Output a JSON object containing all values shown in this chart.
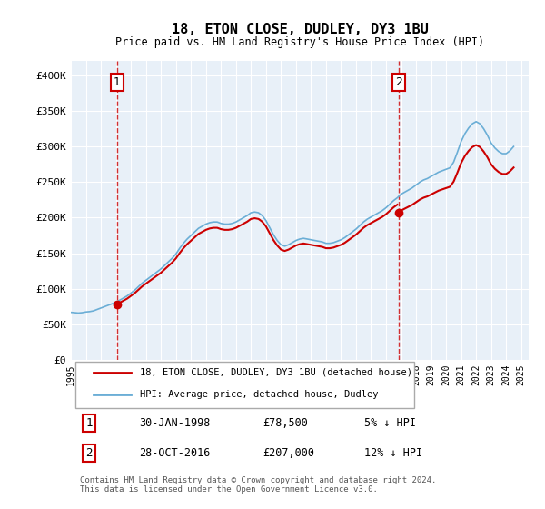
{
  "title": "18, ETON CLOSE, DUDLEY, DY3 1BU",
  "subtitle": "Price paid vs. HM Land Registry's House Price Index (HPI)",
  "xlabel": "",
  "ylabel": "",
  "ylim": [
    0,
    420000
  ],
  "xlim_start": 1995.0,
  "xlim_end": 2025.5,
  "yticks": [
    0,
    50000,
    100000,
    150000,
    200000,
    250000,
    300000,
    350000,
    400000
  ],
  "ytick_labels": [
    "£0",
    "£50K",
    "£100K",
    "£150K",
    "£200K",
    "£250K",
    "£300K",
    "£350K",
    "£400K"
  ],
  "xtick_years": [
    1995,
    1996,
    1997,
    1998,
    1999,
    2000,
    2001,
    2002,
    2003,
    2004,
    2005,
    2006,
    2007,
    2008,
    2009,
    2010,
    2011,
    2012,
    2013,
    2014,
    2015,
    2016,
    2017,
    2018,
    2019,
    2020,
    2021,
    2022,
    2023,
    2024,
    2025
  ],
  "hpi_color": "#6baed6",
  "price_color": "#cc0000",
  "background_color": "#e8f0f8",
  "sale1_date": 1998.08,
  "sale1_price": 78500,
  "sale2_date": 2016.83,
  "sale2_price": 207000,
  "legend_label1": "18, ETON CLOSE, DUDLEY, DY3 1BU (detached house)",
  "legend_label2": "HPI: Average price, detached house, Dudley",
  "annotation1_label": "1",
  "annotation2_label": "2",
  "table_row1": [
    "1",
    "30-JAN-1998",
    "£78,500",
    "5% ↓ HPI"
  ],
  "table_row2": [
    "2",
    "28-OCT-2016",
    "£207,000",
    "12% ↓ HPI"
  ],
  "footer": "Contains HM Land Registry data © Crown copyright and database right 2024.\nThis data is licensed under the Open Government Licence v3.0.",
  "hpi_data_x": [
    1995.0,
    1995.25,
    1995.5,
    1995.75,
    1996.0,
    1996.25,
    1996.5,
    1996.75,
    1997.0,
    1997.25,
    1997.5,
    1997.75,
    1998.0,
    1998.25,
    1998.5,
    1998.75,
    1999.0,
    1999.25,
    1999.5,
    1999.75,
    2000.0,
    2000.25,
    2000.5,
    2000.75,
    2001.0,
    2001.25,
    2001.5,
    2001.75,
    2002.0,
    2002.25,
    2002.5,
    2002.75,
    2003.0,
    2003.25,
    2003.5,
    2003.75,
    2004.0,
    2004.25,
    2004.5,
    2004.75,
    2005.0,
    2005.25,
    2005.5,
    2005.75,
    2006.0,
    2006.25,
    2006.5,
    2006.75,
    2007.0,
    2007.25,
    2007.5,
    2007.75,
    2008.0,
    2008.25,
    2008.5,
    2008.75,
    2009.0,
    2009.25,
    2009.5,
    2009.75,
    2010.0,
    2010.25,
    2010.5,
    2010.75,
    2011.0,
    2011.25,
    2011.5,
    2011.75,
    2012.0,
    2012.25,
    2012.5,
    2012.75,
    2013.0,
    2013.25,
    2013.5,
    2013.75,
    2014.0,
    2014.25,
    2014.5,
    2014.75,
    2015.0,
    2015.25,
    2015.5,
    2015.75,
    2016.0,
    2016.25,
    2016.5,
    2016.75,
    2017.0,
    2017.25,
    2017.5,
    2017.75,
    2018.0,
    2018.25,
    2018.5,
    2018.75,
    2019.0,
    2019.25,
    2019.5,
    2019.75,
    2020.0,
    2020.25,
    2020.5,
    2020.75,
    2021.0,
    2021.25,
    2021.5,
    2021.75,
    2022.0,
    2022.25,
    2022.5,
    2022.75,
    2023.0,
    2023.25,
    2023.5,
    2023.75,
    2024.0,
    2024.25,
    2024.5
  ],
  "hpi_data_y": [
    67000,
    66500,
    66000,
    66500,
    67500,
    68000,
    69000,
    71000,
    73000,
    75000,
    77000,
    79000,
    81000,
    84000,
    87000,
    90000,
    94000,
    98000,
    103000,
    108000,
    112000,
    116000,
    120000,
    124000,
    128000,
    133000,
    138000,
    143000,
    149000,
    157000,
    164000,
    170000,
    175000,
    180000,
    185000,
    188000,
    191000,
    193000,
    194000,
    194000,
    192000,
    191000,
    191000,
    192000,
    194000,
    197000,
    200000,
    203000,
    207000,
    208000,
    207000,
    203000,
    196000,
    186000,
    176000,
    168000,
    162000,
    160000,
    162000,
    165000,
    168000,
    170000,
    171000,
    170000,
    169000,
    168000,
    167000,
    166000,
    164000,
    164000,
    165000,
    167000,
    169000,
    172000,
    176000,
    180000,
    184000,
    189000,
    194000,
    198000,
    201000,
    204000,
    207000,
    210000,
    214000,
    219000,
    224000,
    228000,
    233000,
    236000,
    239000,
    242000,
    246000,
    250000,
    253000,
    255000,
    258000,
    261000,
    264000,
    266000,
    268000,
    270000,
    278000,
    292000,
    307000,
    318000,
    326000,
    332000,
    335000,
    332000,
    325000,
    316000,
    305000,
    298000,
    293000,
    290000,
    290000,
    294000,
    300000
  ],
  "price_data_x": [
    1998.08,
    2016.83
  ],
  "price_data_y": [
    78500,
    207000
  ]
}
